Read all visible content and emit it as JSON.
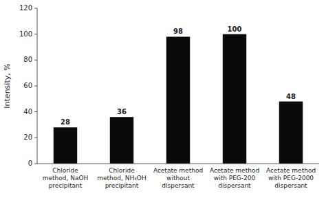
{
  "chart_data": {
    "type": "bar",
    "categories": [
      "Chloride\nmethod, NaOH\nprecipitant",
      "Chloride\nmethod, NH₄OH\nprecipitant",
      "Acetate method\nwithout\ndispersant",
      "Acetate method\nwith PEG-200\ndispersant",
      "Acetate method\nwith PEG-2000\ndispersant"
    ],
    "values": [
      28,
      36,
      98,
      100,
      48
    ],
    "color": "#0a0a0a",
    "ylabel": "Intensity, %",
    "ylim": [
      0,
      120
    ],
    "yticks": [
      0,
      20,
      40,
      60,
      80,
      100,
      120
    ],
    "grid": false,
    "data_labels": true
  }
}
